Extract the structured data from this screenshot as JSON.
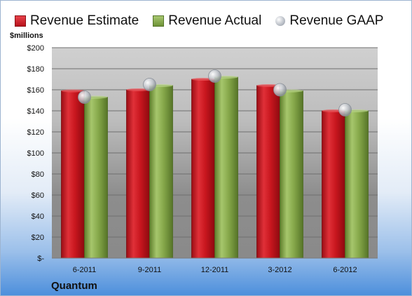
{
  "chart_data": {
    "type": "bar",
    "unit_label": "$millions",
    "company": "Quantum",
    "categories": [
      "6-2011",
      "9-2011",
      "12-2011",
      "3-2012",
      "6-2012"
    ],
    "series": [
      {
        "name": "Revenue Estimate",
        "kind": "bar",
        "color": "#c8161e",
        "values": [
          159,
          160,
          170,
          164,
          140
        ]
      },
      {
        "name": "Revenue Actual",
        "kind": "bar",
        "color": "#86a84a",
        "values": [
          153,
          164,
          172,
          159,
          140
        ]
      },
      {
        "name": "Revenue GAAP",
        "kind": "marker",
        "color": "#b9bec6",
        "values": [
          153,
          165,
          173,
          160,
          141
        ]
      }
    ],
    "ylim": [
      0,
      200
    ],
    "ytick_labels": [
      "$-",
      "$20",
      "$40",
      "$60",
      "$80",
      "$100",
      "$120",
      "$140",
      "$160",
      "$180",
      "$200"
    ],
    "grid": true,
    "legend_position": "top"
  }
}
